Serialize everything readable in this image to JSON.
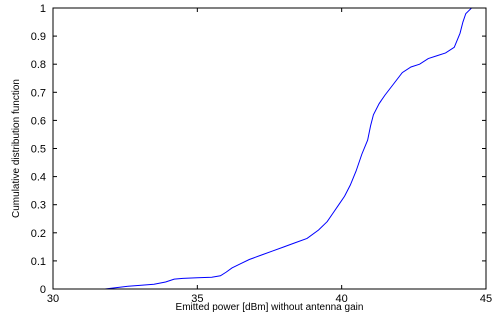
{
  "chart_data": {
    "type": "line",
    "title": "",
    "xlabel": "Emitted power [dBm] without antenna gain",
    "ylabel": "Cumulative distribution function",
    "xlim": [
      30,
      45
    ],
    "ylim": [
      0,
      1
    ],
    "xticks": [
      30,
      35,
      40,
      45
    ],
    "yticks": [
      0,
      0.1,
      0.2,
      0.3,
      0.4,
      0.5,
      0.6,
      0.7,
      0.8,
      0.9,
      1
    ],
    "xtick_labels": [
      "30",
      "35",
      "40",
      "45"
    ],
    "ytick_labels": [
      "0",
      "0.1",
      "0.2",
      "0.3",
      "0.4",
      "0.5",
      "0.6",
      "0.7",
      "0.8",
      "0.9",
      "1"
    ],
    "grid": false,
    "line_color": "#0000ff",
    "series": [
      {
        "x": [
          31.8,
          32.2,
          32.6,
          33.0,
          33.5,
          33.9,
          34.2,
          34.5,
          35.0,
          35.5,
          35.8,
          36.0,
          36.2,
          36.5,
          36.8,
          37.2,
          37.6,
          38.0,
          38.4,
          38.8,
          39.2,
          39.5,
          39.7,
          39.9,
          40.1,
          40.3,
          40.5,
          40.7,
          40.9,
          41.0,
          41.1,
          41.3,
          41.5,
          41.8,
          42.1,
          42.4,
          42.7,
          43.0,
          43.3,
          43.6,
          43.9,
          44.1,
          44.2,
          44.3,
          44.4,
          44.5,
          44.6,
          44.7
        ],
        "y": [
          0.0,
          0.005,
          0.01,
          0.013,
          0.017,
          0.025,
          0.035,
          0.038,
          0.04,
          0.042,
          0.047,
          0.06,
          0.075,
          0.09,
          0.105,
          0.12,
          0.135,
          0.15,
          0.165,
          0.18,
          0.21,
          0.24,
          0.27,
          0.3,
          0.33,
          0.37,
          0.42,
          0.48,
          0.53,
          0.58,
          0.62,
          0.66,
          0.69,
          0.73,
          0.77,
          0.79,
          0.8,
          0.82,
          0.83,
          0.84,
          0.86,
          0.91,
          0.95,
          0.98,
          0.99,
          1.0,
          1.0,
          1.0
        ]
      }
    ]
  }
}
